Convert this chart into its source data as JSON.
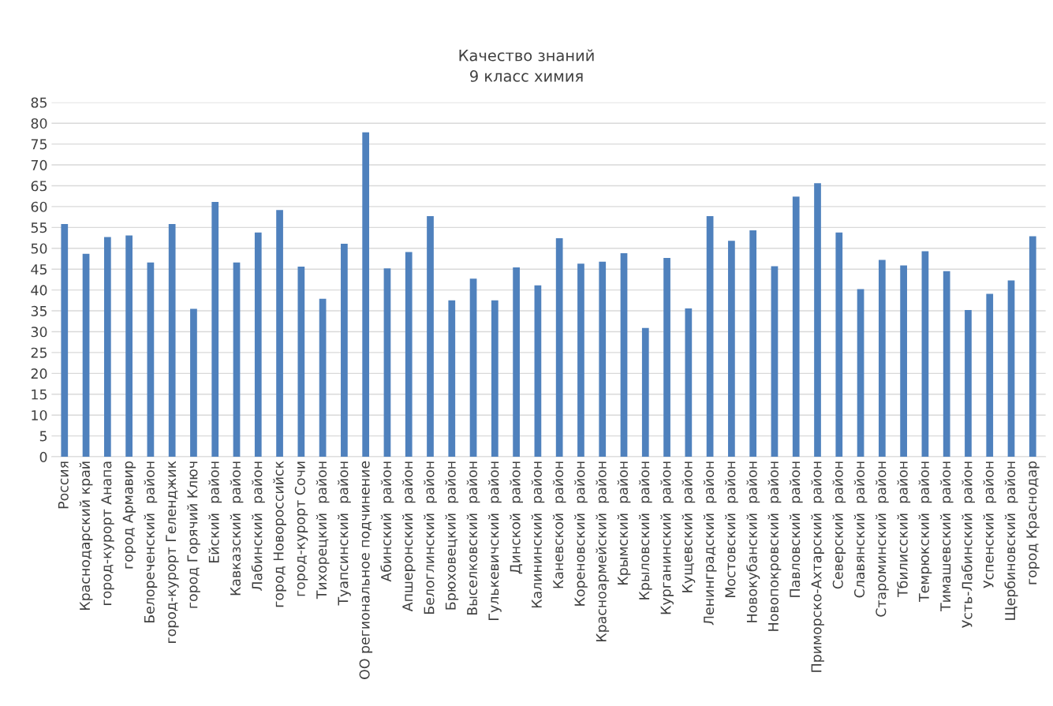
{
  "chart_data": {
    "type": "bar",
    "title": "Качество знаний\n9 класс химия",
    "categories": [
      "Россия",
      "Краснодарский край",
      "город-курорт Анапа",
      "город Армавир",
      "Белореченский  район",
      "город-курорт Геленджик",
      "город Горячий Ключ",
      "Ейский  район",
      "Кавказский  район",
      "Лабинский  район",
      "город Новороссийск",
      "город-курорт Сочи",
      "Тихорецкий  район",
      "Туапсинский  район",
      "ОО региональное подчинение",
      "Абинский  район",
      "Апшеронский  район",
      "Белоглинский  район",
      "Брюховецкий  район",
      "Выселковский  район",
      "Гулькевичский  район",
      "Динской  район",
      "Калининский  район",
      "Каневской  район",
      "Кореновский  район",
      "Красноармейский  район",
      "Крымский  район",
      "Крыловский  район",
      "Курганинский  район",
      "Кущевский  район",
      "Ленинградский  район",
      "Мостовский  район",
      "Новокубанский  район",
      "Новопокровский  район",
      "Павловский  район",
      "Приморско-Ахтарский  район",
      "Северский  район",
      "Славянский  район",
      "Староминский  район",
      "Тбилисский  район",
      "Темрюкский  район",
      "Тимашевский  район",
      "Усть-Лабинский  район",
      "Успенский  район",
      "Щербиновский  район",
      "город Краснодар"
    ],
    "values": [
      55.8,
      48.7,
      52.7,
      53.1,
      46.6,
      55.8,
      35.5,
      61.1,
      46.6,
      53.8,
      59.2,
      45.6,
      37.9,
      51.1,
      77.8,
      45.2,
      49.1,
      57.7,
      37.5,
      42.7,
      37.5,
      45.4,
      41.1,
      52.4,
      46.3,
      46.8,
      48.8,
      30.9,
      47.7,
      35.6,
      57.7,
      51.8,
      54.3,
      45.7,
      62.4,
      65.6,
      53.8,
      40.2,
      47.2,
      45.9,
      49.3,
      44.5,
      35.2,
      39.1,
      42.3,
      52.9
    ],
    "color": "#4f81bd",
    "ylim": [
      0,
      85
    ],
    "yticks": [
      0,
      5,
      10,
      15,
      20,
      25,
      30,
      35,
      40,
      45,
      50,
      55,
      60,
      65,
      70,
      75,
      80,
      85
    ],
    "grid": "y"
  }
}
